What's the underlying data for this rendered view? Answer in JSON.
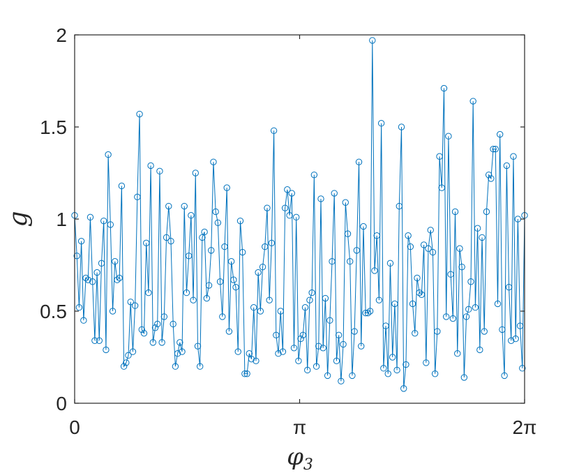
{
  "chart_data": {
    "type": "line",
    "marker": "circle",
    "xlabel": "φ",
    "xlabel_subscript": "3",
    "ylabel": "g",
    "xlim": [
      0,
      6.2832
    ],
    "ylim": [
      0,
      2
    ],
    "xticks": [
      {
        "value": 0,
        "label": "0"
      },
      {
        "value": 3.1416,
        "label": "π"
      },
      {
        "value": 6.2832,
        "label": "2π"
      }
    ],
    "yticks": [
      {
        "value": 0,
        "label": "0"
      },
      {
        "value": 0.5,
        "label": "0.5"
      },
      {
        "value": 1,
        "label": "1"
      },
      {
        "value": 1.5,
        "label": "1.5"
      },
      {
        "value": 2,
        "label": "2"
      }
    ],
    "grid": false,
    "legend": "none",
    "colors": {
      "series": "#0072BD",
      "axes": "#262626"
    },
    "series": [
      {
        "values": [
          1.02,
          0.8,
          0.52,
          0.88,
          0.45,
          0.68,
          0.67,
          1.01,
          0.66,
          0.34,
          0.71,
          0.34,
          0.76,
          0.99,
          0.29,
          1.35,
          0.97,
          0.5,
          0.77,
          0.67,
          0.68,
          1.18,
          0.2,
          0.22,
          0.26,
          0.55,
          0.28,
          0.53,
          1.12,
          1.57,
          0.4,
          0.38,
          0.87,
          0.6,
          1.29,
          0.33,
          0.41,
          0.43,
          1.26,
          0.33,
          0.47,
          0.9,
          1.07,
          0.88,
          0.43,
          0.2,
          0.27,
          0.33,
          0.28,
          1.07,
          0.6,
          0.8,
          1.02,
          0.56,
          1.25,
          0.31,
          0.2,
          0.9,
          0.93,
          0.57,
          0.64,
          0.83,
          1.31,
          1.04,
          0.98,
          0.66,
          0.47,
          0.85,
          1.17,
          0.39,
          0.77,
          0.67,
          0.63,
          0.28,
          0.99,
          0.82,
          0.16,
          0.16,
          0.27,
          0.24,
          0.52,
          0.23,
          0.71,
          0.5,
          0.74,
          0.85,
          1.06,
          0.56,
          0.87,
          1.48,
          0.37,
          0.27,
          0.5,
          0.28,
          1.06,
          1.16,
          1.02,
          1.14,
          0.3,
          1.01,
          0.23,
          0.35,
          0.37,
          0.52,
          0.18,
          0.56,
          0.6,
          1.24,
          0.2,
          0.31,
          1.11,
          0.3,
          0.57,
          0.15,
          0.45,
          0.77,
          1.14,
          0.23,
          0.37,
          0.12,
          0.32,
          1.09,
          0.92,
          0.77,
          0.15,
          0.39,
          0.83,
          1.31,
          0.31,
          0.96,
          0.49,
          0.49,
          0.5,
          1.97,
          0.72,
          0.91,
          0.56,
          1.52,
          0.19,
          0.42,
          0.16,
          0.76,
          0.25,
          0.54,
          0.18,
          1.07,
          1.5,
          0.08,
          0.21,
          0.91,
          0.85,
          0.54,
          0.38,
          0.68,
          0.6,
          0.59,
          0.86,
          0.22,
          0.84,
          0.94,
          0.82,
          0.16,
          0.39,
          1.34,
          1.17,
          1.71,
          0.47,
          1.45,
          0.7,
          0.46,
          1.04,
          0.27,
          0.84,
          0.74,
          0.14,
          0.47,
          0.51,
          0.66,
          1.64,
          0.52,
          0.95,
          0.29,
          0.9,
          0.39,
          1.04,
          1.24,
          1.22,
          1.38,
          1.38,
          0.54,
          1.46,
          0.4,
          0.15,
          1.29,
          0.63,
          0.34,
          1.34,
          0.35,
          1.0,
          0.42,
          0.19,
          1.02
        ]
      }
    ]
  }
}
